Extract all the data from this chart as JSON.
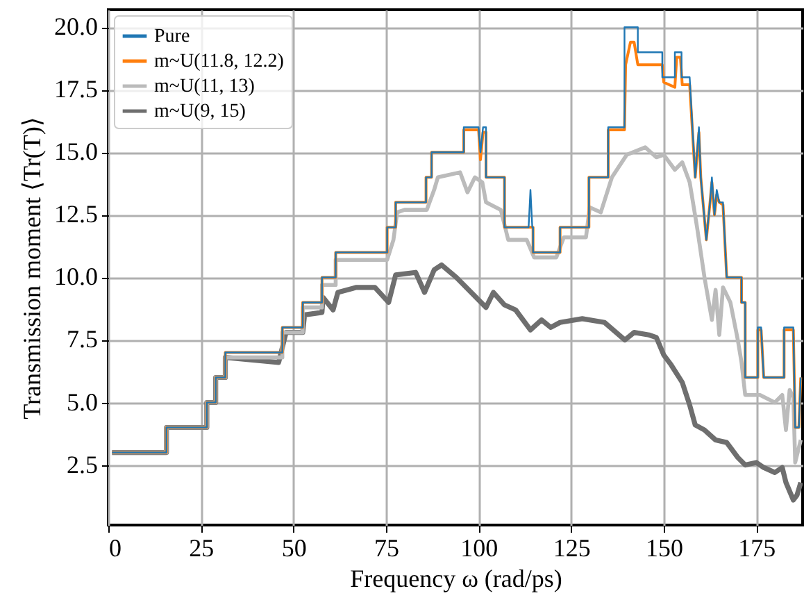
{
  "chart_data": {
    "type": "line",
    "xlabel": "Frequency ω (rad/ps)",
    "ylabel": "Transmission moment ⟨Tr(T)⟩",
    "xlim": [
      0,
      187.5
    ],
    "ylim": [
      0.1,
      20.7
    ],
    "xticks": [
      0,
      25,
      50,
      75,
      100,
      125,
      150,
      175
    ],
    "yticks": [
      {
        "value": 2.5,
        "label": "2.5"
      },
      {
        "value": 5,
        "label": "5.0"
      },
      {
        "value": 7.5,
        "label": "7.5"
      },
      {
        "value": 10,
        "label": "10.0"
      },
      {
        "value": 12.5,
        "label": "12.5"
      },
      {
        "value": 15,
        "label": "15.0"
      },
      {
        "value": 17.5,
        "label": "17.5"
      },
      {
        "value": 20,
        "label": "20.0"
      }
    ],
    "grid": true,
    "legend": "top left",
    "line_style": "solid",
    "series": [
      {
        "name": "Pure",
        "color": "#1f77b4",
        "x": [
          1,
          15.7,
          15.7,
          26.6,
          26.6,
          29,
          29,
          31.6,
          31.6,
          47,
          47,
          52.5,
          52.5,
          57.7,
          57.7,
          61.4,
          61.4,
          75.3,
          75.3,
          77.6,
          77.6,
          85.8,
          85.8,
          87.3,
          87.3,
          96,
          96,
          100,
          100.5,
          101.2,
          102,
          102,
          107,
          107,
          113.5,
          114,
          114.5,
          114.7,
          114.7,
          122,
          122,
          129.8,
          129.8,
          135,
          135,
          139.4,
          139.4,
          143,
          143,
          149.6,
          149.6,
          153,
          153,
          154.8,
          154.8,
          157,
          158.5,
          159.5,
          160,
          161.5,
          162.5,
          163,
          163.7,
          164.3,
          165,
          166,
          167,
          171,
          171,
          172,
          172,
          175.4,
          175.4,
          176.3,
          177,
          182.5,
          182.5,
          185,
          185.5,
          186.5,
          187
        ],
        "values": [
          3,
          3,
          4,
          4,
          5,
          5,
          6,
          6,
          7,
          7,
          8,
          8,
          9,
          9,
          10,
          10,
          11,
          11,
          12,
          12,
          13,
          13,
          14,
          14,
          15,
          15,
          16,
          16,
          15,
          16,
          16,
          14,
          14,
          12,
          12,
          13.5,
          12,
          12,
          11,
          11,
          12,
          12,
          14,
          14,
          16,
          16,
          20,
          20,
          19,
          19,
          18,
          18,
          19,
          19,
          18,
          18,
          14,
          16,
          14,
          11.5,
          13,
          14,
          12.5,
          13.5,
          13,
          13,
          10,
          10,
          9,
          9,
          6,
          6,
          8,
          8,
          6,
          6,
          8,
          8,
          4,
          4,
          6
        ]
      },
      {
        "name": "m~U(11.8, 12.2)",
        "color": "#ff7f0e",
        "x": [
          1,
          15.7,
          15.7,
          26.6,
          26.6,
          29,
          29,
          31.6,
          31.6,
          47,
          47,
          52.5,
          52.5,
          57.7,
          57.7,
          61.4,
          61.4,
          75.3,
          75.3,
          77.6,
          77.6,
          85.8,
          85.8,
          87.3,
          87.3,
          96,
          96,
          100,
          100.5,
          101.2,
          102,
          102,
          107,
          107,
          114.7,
          114.7,
          122,
          122,
          129.8,
          129.8,
          135,
          135,
          139.4,
          139.7,
          141,
          142,
          143,
          149.6,
          150,
          153,
          153.5,
          154.5,
          155,
          157,
          158.5,
          159.5,
          160,
          161.5,
          162.5,
          163,
          163.7,
          164.3,
          165,
          166,
          167,
          171,
          171,
          172,
          172,
          175.4,
          175.4,
          176.3,
          177,
          182.5,
          182.5,
          185,
          185.5,
          186.5,
          187
        ],
        "values": [
          3,
          3,
          4,
          4,
          5,
          5,
          6,
          6,
          7,
          7,
          8,
          8,
          9,
          9,
          10,
          10,
          11,
          11,
          12,
          12,
          13,
          13,
          14,
          14,
          15,
          15,
          15.9,
          15.9,
          14.7,
          15.8,
          15.8,
          14,
          14,
          12,
          12,
          11,
          11,
          12,
          12,
          14,
          14,
          15.9,
          15.9,
          18.5,
          19.4,
          19.4,
          18.5,
          18.5,
          17.8,
          17.6,
          18.8,
          18.8,
          17.7,
          17.7,
          14,
          15.8,
          14,
          11.5,
          13,
          13.8,
          12.5,
          13.3,
          13,
          12.9,
          10,
          10,
          9,
          9,
          6,
          6,
          7.9,
          7.9,
          6,
          6,
          7.9,
          7.9,
          4,
          4,
          6
        ]
      },
      {
        "name": "m~U(11, 13)",
        "color": "#bbbbbb",
        "x": [
          1,
          15.7,
          15.7,
          26.6,
          26.6,
          29,
          29,
          31.6,
          31.6,
          47,
          47,
          52.5,
          52.5,
          57.7,
          57.7,
          61.4,
          61.4,
          75.3,
          77,
          78,
          80,
          86,
          88,
          89,
          92,
          95,
          97,
          99,
          101,
          102,
          106,
          108,
          113,
          115,
          121,
          123,
          129,
          130,
          133,
          136,
          140,
          145,
          148,
          150,
          153,
          155,
          157,
          159,
          161,
          163,
          164,
          165,
          166,
          168,
          170,
          171,
          172,
          176,
          180,
          182,
          183,
          184,
          185,
          185.5,
          187
        ],
        "values": [
          3,
          3,
          4,
          4,
          5,
          5,
          6,
          6,
          6.8,
          6.8,
          7.8,
          7.8,
          8.8,
          8.8,
          9.7,
          9.7,
          10.7,
          10.7,
          11.5,
          12.6,
          12.7,
          12.7,
          13.5,
          14,
          14.1,
          14.2,
          13.4,
          14,
          13.8,
          13,
          12.7,
          11.5,
          11.5,
          10.8,
          10.8,
          11.6,
          11.6,
          12.8,
          12.6,
          14,
          14.9,
          15.2,
          14.8,
          14.9,
          14.3,
          14.6,
          13.8,
          12,
          10,
          8.3,
          9.5,
          7.7,
          9.6,
          9,
          7.5,
          6.6,
          5.3,
          5.3,
          5,
          5.3,
          3.9,
          5.5,
          5.2,
          2.6,
          3.5
        ]
      },
      {
        "name": "m~U(9, 15)",
        "color": "#6e6e6e",
        "x": [
          1,
          15.7,
          15.7,
          26.6,
          26.6,
          29,
          29,
          31.6,
          31.6,
          46,
          47,
          48,
          52.5,
          53,
          57.7,
          58,
          60.7,
          62,
          67,
          72,
          75.7,
          77.6,
          83,
          85.4,
          88,
          90,
          94,
          102,
          104,
          107,
          110,
          114,
          117,
          119.5,
          122,
          128,
          134,
          139.5,
          142,
          146,
          148,
          150,
          152,
          155,
          157,
          158.5,
          161,
          164,
          167,
          170,
          172,
          175,
          177,
          180,
          182,
          183,
          185,
          186,
          187
        ],
        "values": [
          3,
          3,
          4,
          4,
          5,
          5,
          6,
          6,
          6.8,
          6.6,
          7.2,
          7.8,
          7.8,
          8.5,
          8.6,
          9.2,
          8.7,
          9.4,
          9.6,
          9.6,
          9,
          10.1,
          10.2,
          9.4,
          10.3,
          10.5,
          10,
          8.8,
          9.4,
          8.9,
          8.7,
          7.9,
          8.3,
          8,
          8.2,
          8.35,
          8.2,
          7.5,
          7.8,
          7.7,
          7.6,
          6.9,
          6.5,
          5.8,
          4.9,
          4.1,
          3.9,
          3.5,
          3.4,
          2.8,
          2.5,
          2.6,
          2.4,
          2.2,
          2.4,
          1.8,
          1.1,
          1.3,
          1.8
        ]
      }
    ]
  }
}
